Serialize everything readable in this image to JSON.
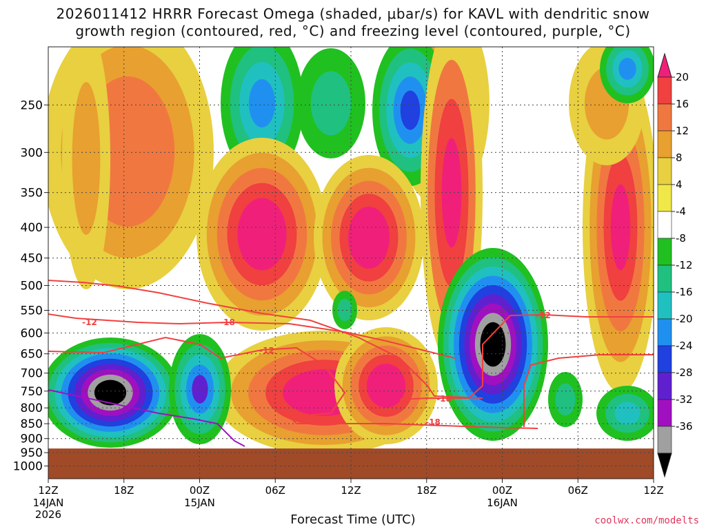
{
  "title_line1": "2026011412 HRRR Forecast Omega (shaded, μbar/s) for KAVL with dendritic snow",
  "title_line2": "growth region (contoured, red, °C) and freezing level (contoured, purple, °C)",
  "xlabel": "Forecast Time (UTC)",
  "credit": "coolwx.com/modelts",
  "chart_data": {
    "type": "heatmap",
    "title": "2026011412 HRRR Forecast Omega (shaded, μbar/s) for KAVL with dendritic snow growth region (contoured, red, °C) and freezing level (contoured, purple, °C)",
    "xlabel": "Forecast Time (UTC)",
    "ylabel": "",
    "x_range_hours": [
      0,
      48
    ],
    "x_ticks": [
      {
        "h": 0,
        "label": "12Z",
        "sub": [
          "14JAN",
          "2026"
        ]
      },
      {
        "h": 6,
        "label": "18Z",
        "sub": []
      },
      {
        "h": 12,
        "label": "00Z",
        "sub": [
          "15JAN"
        ]
      },
      {
        "h": 18,
        "label": "06Z",
        "sub": []
      },
      {
        "h": 24,
        "label": "12Z",
        "sub": []
      },
      {
        "h": 30,
        "label": "18Z",
        "sub": []
      },
      {
        "h": 36,
        "label": "00Z",
        "sub": [
          "16JAN"
        ]
      },
      {
        "h": 42,
        "label": "06Z",
        "sub": []
      },
      {
        "h": 48,
        "label": "12Z",
        "sub": []
      }
    ],
    "y_ticks_hpa": [
      250,
      300,
      350,
      400,
      450,
      500,
      550,
      600,
      650,
      700,
      750,
      800,
      850,
      900,
      950,
      1000
    ],
    "y_range_hpa": [
      200,
      1050
    ],
    "surface_pressure_hpa": 935,
    "colorbar": {
      "levels": [
        20,
        16,
        12,
        8,
        4,
        -4,
        -8,
        -12,
        -16,
        -20,
        -24,
        -28,
        -32,
        -36
      ],
      "colors_top_to_bottom": [
        "#f0207a",
        "#f04040",
        "#f07840",
        "#e8a030",
        "#e8d040",
        "#f0e848",
        "#ffffff",
        "#20c020",
        "#20c080",
        "#20c0c0",
        "#2090f0",
        "#2040e0",
        "#6020d0",
        "#a010c0",
        "#a0a0a0",
        "#000000"
      ]
    },
    "contours": [
      {
        "name": "-12",
        "color": "red"
      },
      {
        "name": "-18",
        "color": "red"
      },
      {
        "name": "0",
        "color": "purple"
      }
    ],
    "contour_labels": [
      "-12",
      "-18",
      "-12",
      "-18",
      "-12",
      "-18"
    ]
  }
}
